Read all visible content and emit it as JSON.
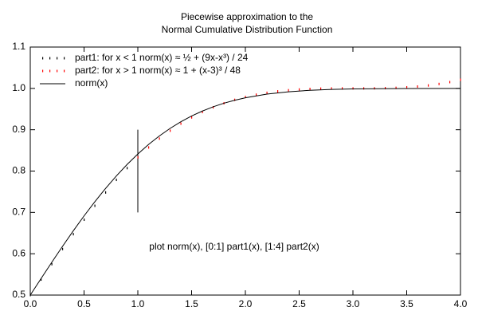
{
  "chart_data": {
    "type": "line",
    "title": [
      "Piecewise approximation to the",
      "Normal Cumulative Distribution Function"
    ],
    "annotation": "plot norm(x),  [0:1] part1(x),  [1:4] part2(x)",
    "xlim": [
      0,
      4
    ],
    "ylim": [
      0.5,
      1.1
    ],
    "xticks": [
      {
        "value": 0,
        "label": "0.0"
      },
      0.5,
      {
        "value": 1,
        "label": "1.0"
      },
      1.5,
      {
        "value": 2,
        "label": "2.0"
      },
      2.5,
      {
        "value": 3,
        "label": "3.0"
      },
      3.5,
      {
        "value": 4,
        "label": "4.0"
      }
    ],
    "yticks": [
      0.5,
      0.6,
      0.7,
      0.8,
      0.9,
      {
        "value": 1,
        "label": "1.0"
      },
      1.1
    ],
    "vline": {
      "x": 1,
      "y": [
        0.7,
        0.9
      ]
    },
    "series": [
      {
        "name": "part1: for x < 1  norm(x) ≈  ½ + (9x-x³) / 24",
        "color": "#000000",
        "style": "dots",
        "x": [
          0,
          0.1,
          0.2,
          0.3,
          0.4,
          0.5,
          0.6,
          0.7,
          0.8,
          0.9,
          1.0
        ],
        "values": [
          0.5,
          0.5375,
          0.5747,
          0.6114,
          0.6473,
          0.6823,
          0.716,
          0.7482,
          0.7787,
          0.8071,
          0.8333
        ]
      },
      {
        "name": "part2: for x > 1  norm(x) ≈  1 + (x-3)³ / 48",
        "color": "#ff0000",
        "style": "dots",
        "x": [
          1.0,
          1.1,
          1.2,
          1.3,
          1.4,
          1.5,
          1.6,
          1.7,
          1.8,
          1.9,
          2.0,
          2.1,
          2.2,
          2.3,
          2.4,
          2.5,
          2.6,
          2.7,
          2.8,
          2.9,
          3.0,
          3.1,
          3.2,
          3.3,
          3.4,
          3.5,
          3.6,
          3.7,
          3.8,
          3.9,
          4.0
        ],
        "values": [
          0.8333,
          0.8571,
          0.8785,
          0.8976,
          0.9147,
          0.9297,
          0.9428,
          0.9542,
          0.964,
          0.9723,
          0.9792,
          0.9848,
          0.9893,
          0.9929,
          0.9955,
          0.9974,
          0.9987,
          0.9994,
          0.9998,
          1.0,
          1.0,
          1.0,
          1.0002,
          1.0006,
          1.0013,
          1.0026,
          1.0045,
          1.0071,
          1.0107,
          1.0152,
          1.0208
        ]
      },
      {
        "name": "norm(x)",
        "color": "#000000",
        "style": "line",
        "x": [
          0,
          0.1,
          0.2,
          0.3,
          0.4,
          0.5,
          0.6,
          0.7,
          0.8,
          0.9,
          1.0,
          1.1,
          1.2,
          1.3,
          1.4,
          1.5,
          1.6,
          1.7,
          1.8,
          1.9,
          2.0,
          2.2,
          2.4,
          2.6,
          2.8,
          3.0,
          3.5,
          4.0
        ],
        "values": [
          0.5,
          0.5398,
          0.5793,
          0.6179,
          0.6554,
          0.6915,
          0.7257,
          0.758,
          0.7881,
          0.8159,
          0.8413,
          0.8643,
          0.8849,
          0.9032,
          0.9192,
          0.9332,
          0.9452,
          0.9554,
          0.9641,
          0.9713,
          0.9772,
          0.9861,
          0.9918,
          0.9953,
          0.9974,
          0.9987,
          0.9998,
          1.0
        ]
      }
    ]
  }
}
